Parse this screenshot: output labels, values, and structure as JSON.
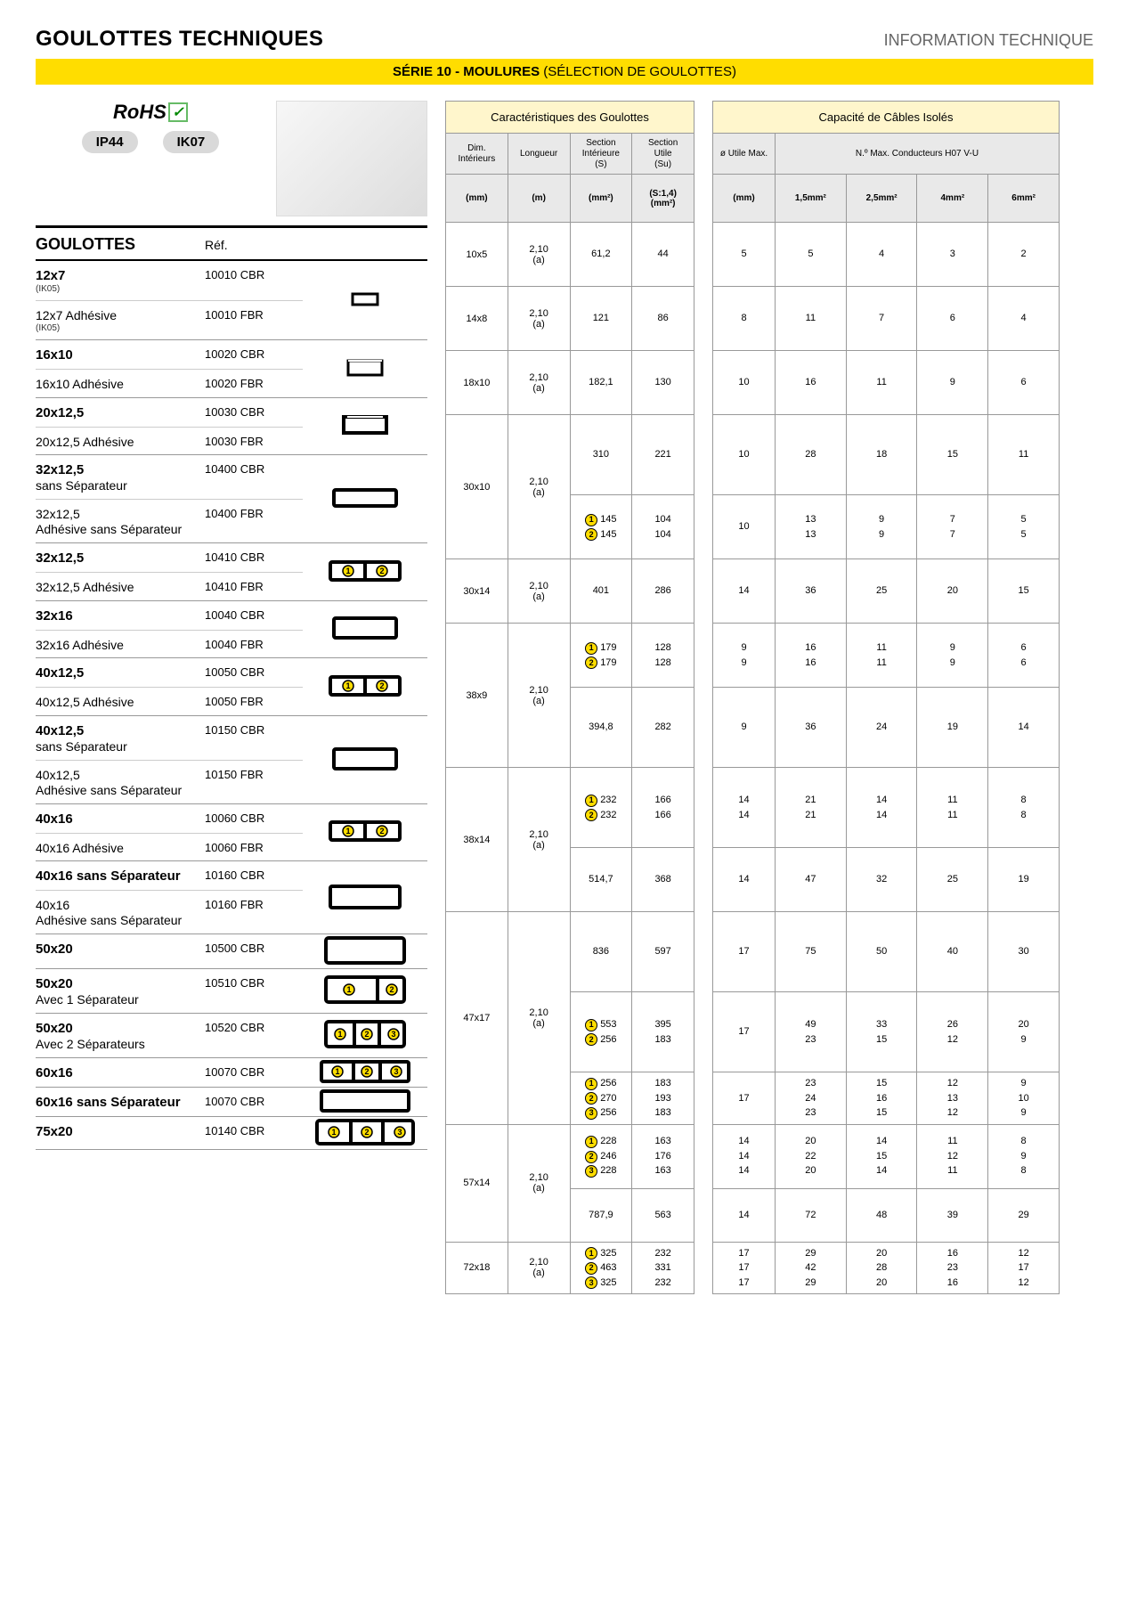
{
  "header": {
    "title": "GOULOTTES TECHNIQUES",
    "subtitle": "INFORMATION TECHNIQUE",
    "series_bold": "SÉRIE 10 - MOULURES",
    "series_light": " (SÉLECTION DE GOULOTTES)"
  },
  "colors": {
    "yellow": "#ffdd00",
    "header_grey": "#e9e9e9",
    "title_yellow_bg": "#fff6cc"
  },
  "left": {
    "rohs": "RoHS",
    "ip": "IP44",
    "ik": "IK07",
    "col_goulottes": "GOULOTTES",
    "col_ref": "Réf."
  },
  "products": [
    {
      "group": "g1",
      "profile": "p_small",
      "rows": [
        {
          "name_bold": "12x7",
          "name_sub": "(IK05)",
          "ref": "10010 CBR"
        },
        {
          "name_bold": "",
          "name_plain": "12x7 Adhésive",
          "name_sub": "(IK05)",
          "ref": "10010 FBR"
        }
      ]
    },
    {
      "group": "g2",
      "profile": "p_open",
      "rows": [
        {
          "name_bold": "16x10",
          "ref": "10020 CBR"
        },
        {
          "name_plain": "16x10 Adhésive",
          "ref": "10020 FBR"
        }
      ]
    },
    {
      "group": "g3",
      "profile": "p_open2",
      "rows": [
        {
          "name_bold": "20x12,5",
          "ref": "10030 CBR"
        },
        {
          "name_plain": "20x12,5 Adhésive",
          "ref": "10030 FBR"
        }
      ]
    },
    {
      "group": "g4",
      "profile": "p_wide",
      "rows": [
        {
          "name_bold": "32x12,5",
          "name_plain2": "sans Séparateur",
          "ref": "10400 CBR"
        },
        {
          "name_plain": "32x12,5",
          "name_plain2": "Adhésive sans Séparateur",
          "ref": "10400 FBR"
        }
      ]
    },
    {
      "group": "g5",
      "profile": "p_sep12",
      "rows": [
        {
          "name_bold": "32x12,5",
          "ref": "10410 CBR"
        },
        {
          "name_plain": "32x12,5 Adhésive",
          "ref": "10410 FBR"
        }
      ]
    },
    {
      "group": "g6",
      "profile": "p_wide2",
      "rows": [
        {
          "name_bold": "32x16",
          "ref": "10040 CBR"
        },
        {
          "name_plain": "32x16 Adhésive",
          "ref": "10040 FBR"
        }
      ]
    },
    {
      "group": "g7",
      "profile": "p_sep12",
      "rows": [
        {
          "name_bold": "40x12,5",
          "ref": "10050 CBR"
        },
        {
          "name_plain": "40x12,5 Adhésive",
          "ref": "10050 FBR"
        }
      ]
    },
    {
      "group": "g8",
      "profile": "p_wide2",
      "rows": [
        {
          "name_bold": "40x12,5",
          "name_plain2": "sans Séparateur",
          "ref": "10150 CBR"
        },
        {
          "name_plain": "40x12,5",
          "name_plain2": "Adhésive sans Séparateur",
          "ref": "10150 FBR"
        }
      ]
    },
    {
      "group": "g9",
      "profile": "p_sep12",
      "rows": [
        {
          "name_bold": "40x16",
          "ref": "10060 CBR"
        },
        {
          "name_plain": "40x16 Adhésive",
          "ref": "10060 FBR"
        }
      ]
    },
    {
      "group": "g10",
      "profile": "p_wide3",
      "rows": [
        {
          "name_bold": "40x16 sans Séparateur",
          "ref": "10160 CBR"
        },
        {
          "name_plain": "40x16",
          "name_plain2": "Adhésive sans Séparateur",
          "ref": "10160 FBR"
        }
      ]
    },
    {
      "group": "g11",
      "profile": "p_big",
      "rows": [
        {
          "name_bold": "50x20",
          "ref": "10500 CBR"
        }
      ]
    },
    {
      "group": "g12",
      "profile": "p_big_sep1",
      "rows": [
        {
          "name_bold": "50x20",
          "name_plain2": "Avec 1 Séparateur",
          "ref": "10510 CBR"
        }
      ]
    },
    {
      "group": "g13",
      "profile": "p_big_sep2",
      "rows": [
        {
          "name_bold": "50x20",
          "name_plain2": "Avec 2 Séparateurs",
          "ref": "10520 CBR"
        }
      ]
    },
    {
      "group": "g14",
      "profile": "p_60_sep2",
      "rows": [
        {
          "name_bold": "60x16",
          "ref": "10070 CBR"
        }
      ]
    },
    {
      "group": "g15",
      "profile": "p_60",
      "rows": [
        {
          "name_bold": "60x16 sans Séparateur",
          "ref": "10070 CBR"
        }
      ]
    },
    {
      "group": "g16",
      "profile": "p_75",
      "rows": [
        {
          "name_bold": "75x20",
          "ref": "10140 CBR"
        }
      ]
    }
  ],
  "mid": {
    "title": "Caractéristiques des Goulottes",
    "hdrs": [
      "Dim. Intérieurs",
      "Longueur",
      "Section Intérieure (S)",
      "Section Utile (Su)"
    ],
    "units": [
      "(mm)",
      "(m)",
      "(mm²)",
      "(S:1,4) (mm²)"
    ],
    "rows": [
      {
        "dim": "10x5",
        "len": "2,10 (a)",
        "s": [
          "61,2"
        ],
        "su": [
          "44"
        ],
        "span_dim": 1,
        "span_len": 1
      },
      {
        "dim": "14x8",
        "len": "2,10 (a)",
        "s": [
          "121"
        ],
        "su": [
          "86"
        ],
        "span_dim": 1,
        "span_len": 1
      },
      {
        "dim": "18x10",
        "len": "2,10 (a)",
        "s": [
          "182,1"
        ],
        "su": [
          "130"
        ],
        "span_dim": 1,
        "span_len": 1
      },
      {
        "dim": "30x10",
        "len": "2,10 (a)",
        "span_dim": 2,
        "span_len": 2,
        "cells": [
          {
            "s": [
              "310"
            ],
            "su": [
              "221"
            ]
          },
          {
            "s": [
              {
                "c": "1",
                "v": "145"
              },
              {
                "c": "2",
                "v": "145"
              }
            ],
            "su": [
              "104",
              "104"
            ]
          }
        ]
      },
      {
        "dim": "30x14",
        "len": "2,10 (a)",
        "s": [
          "401"
        ],
        "su": [
          "286"
        ],
        "span_dim": 1,
        "span_len": 1
      },
      {
        "dim": "38x9",
        "len": "2,10 (a)",
        "span_dim": 2,
        "span_len": 2,
        "cells": [
          {
            "s": [
              {
                "c": "1",
                "v": "179"
              },
              {
                "c": "2",
                "v": "179"
              }
            ],
            "su": [
              "128",
              "128"
            ]
          },
          {
            "s": [
              "394,8"
            ],
            "su": [
              "282"
            ]
          }
        ]
      },
      {
        "dim": "38x14",
        "len": "2,10 (a)",
        "span_dim": 2,
        "span_len": 2,
        "cells": [
          {
            "s": [
              {
                "c": "1",
                "v": "232"
              },
              {
                "c": "2",
                "v": "232"
              }
            ],
            "su": [
              "166",
              "166"
            ]
          },
          {
            "s": [
              "514,7"
            ],
            "su": [
              "368"
            ]
          }
        ]
      },
      {
        "dim": "47x17",
        "len": "2,10 (a)",
        "span_dim": 3,
        "span_len": 3,
        "cells": [
          {
            "s": [
              "836"
            ],
            "su": [
              "597"
            ]
          },
          {
            "s": [
              {
                "c": "1",
                "v": "553"
              },
              {
                "c": "2",
                "v": "256"
              }
            ],
            "su": [
              "395",
              "183"
            ]
          },
          {
            "s": [
              {
                "c": "1",
                "v": "256"
              },
              {
                "c": "2",
                "v": "270"
              },
              {
                "c": "3",
                "v": "256"
              }
            ],
            "su": [
              "183",
              "193",
              "183"
            ]
          }
        ]
      },
      {
        "dim": "57x14",
        "len": "2,10 (a)",
        "span_dim": 2,
        "span_len": 2,
        "cells": [
          {
            "s": [
              {
                "c": "1",
                "v": "228"
              },
              {
                "c": "2",
                "v": "246"
              },
              {
                "c": "3",
                "v": "228"
              }
            ],
            "su": [
              "163",
              "176",
              "163"
            ]
          },
          {
            "s": [
              "787,9"
            ],
            "su": [
              "563"
            ]
          }
        ]
      },
      {
        "dim": "72x18",
        "len": "2,10 (a)",
        "span_dim": 1,
        "span_len": 1,
        "cells": [
          {
            "s": [
              {
                "c": "1",
                "v": "325"
              },
              {
                "c": "2",
                "v": "463"
              },
              {
                "c": "3",
                "v": "325"
              }
            ],
            "su": [
              "232",
              "331",
              "232"
            ]
          }
        ]
      }
    ]
  },
  "right": {
    "title": "Capacité de Câbles Isolés",
    "hdrs": [
      "ø Utile Max.",
      "N.º Max. Conducteurs H07 V-U"
    ],
    "units": [
      "(mm)",
      "1,5mm²",
      "2,5mm²",
      "4mm²",
      "6mm²"
    ],
    "rows": [
      {
        "d": [
          "5"
        ],
        "c": [
          [
            "5",
            "4",
            "3",
            "2"
          ]
        ]
      },
      {
        "d": [
          "8"
        ],
        "c": [
          [
            "11",
            "7",
            "6",
            "4"
          ]
        ]
      },
      {
        "d": [
          "10"
        ],
        "c": [
          [
            "16",
            "11",
            "9",
            "6"
          ]
        ]
      },
      {
        "d": [
          "10"
        ],
        "c": [
          [
            "28",
            "18",
            "15",
            "11"
          ]
        ]
      },
      {
        "d": [
          "10"
        ],
        "c": [
          [
            "13",
            "9",
            "7",
            "5"
          ],
          [
            "13",
            "9",
            "7",
            "5"
          ]
        ]
      },
      {
        "d": [
          "14"
        ],
        "c": [
          [
            "36",
            "25",
            "20",
            "15"
          ]
        ]
      },
      {
        "d": [
          "9",
          "9"
        ],
        "c": [
          [
            "16",
            "11",
            "9",
            "6"
          ],
          [
            "16",
            "11",
            "9",
            "6"
          ]
        ]
      },
      {
        "d": [
          "9"
        ],
        "c": [
          [
            "36",
            "24",
            "19",
            "14"
          ]
        ]
      },
      {
        "d": [
          "14",
          "14"
        ],
        "c": [
          [
            "21",
            "14",
            "11",
            "8"
          ],
          [
            "21",
            "14",
            "11",
            "8"
          ]
        ]
      },
      {
        "d": [
          "14"
        ],
        "c": [
          [
            "47",
            "32",
            "25",
            "19"
          ]
        ]
      },
      {
        "d": [
          "17"
        ],
        "c": [
          [
            "75",
            "50",
            "40",
            "30"
          ]
        ]
      },
      {
        "d": [
          "17"
        ],
        "c": [
          [
            "49",
            "33",
            "26",
            "20"
          ],
          [
            "23",
            "15",
            "12",
            "9"
          ]
        ]
      },
      {
        "d": [
          "17"
        ],
        "c": [
          [
            "23",
            "15",
            "12",
            "9"
          ],
          [
            "24",
            "16",
            "13",
            "10"
          ],
          [
            "23",
            "15",
            "12",
            "9"
          ]
        ]
      },
      {
        "d": [
          "14",
          "14",
          "14"
        ],
        "c": [
          [
            "20",
            "14",
            "11",
            "8"
          ],
          [
            "22",
            "15",
            "12",
            "9"
          ],
          [
            "20",
            "14",
            "11",
            "8"
          ]
        ]
      },
      {
        "d": [
          "14"
        ],
        "c": [
          [
            "72",
            "48",
            "39",
            "29"
          ]
        ]
      },
      {
        "d": [
          "17",
          "17",
          "17"
        ],
        "c": [
          [
            "29",
            "20",
            "16",
            "12"
          ],
          [
            "42",
            "28",
            "23",
            "17"
          ],
          [
            "29",
            "20",
            "16",
            "12"
          ]
        ]
      }
    ]
  }
}
